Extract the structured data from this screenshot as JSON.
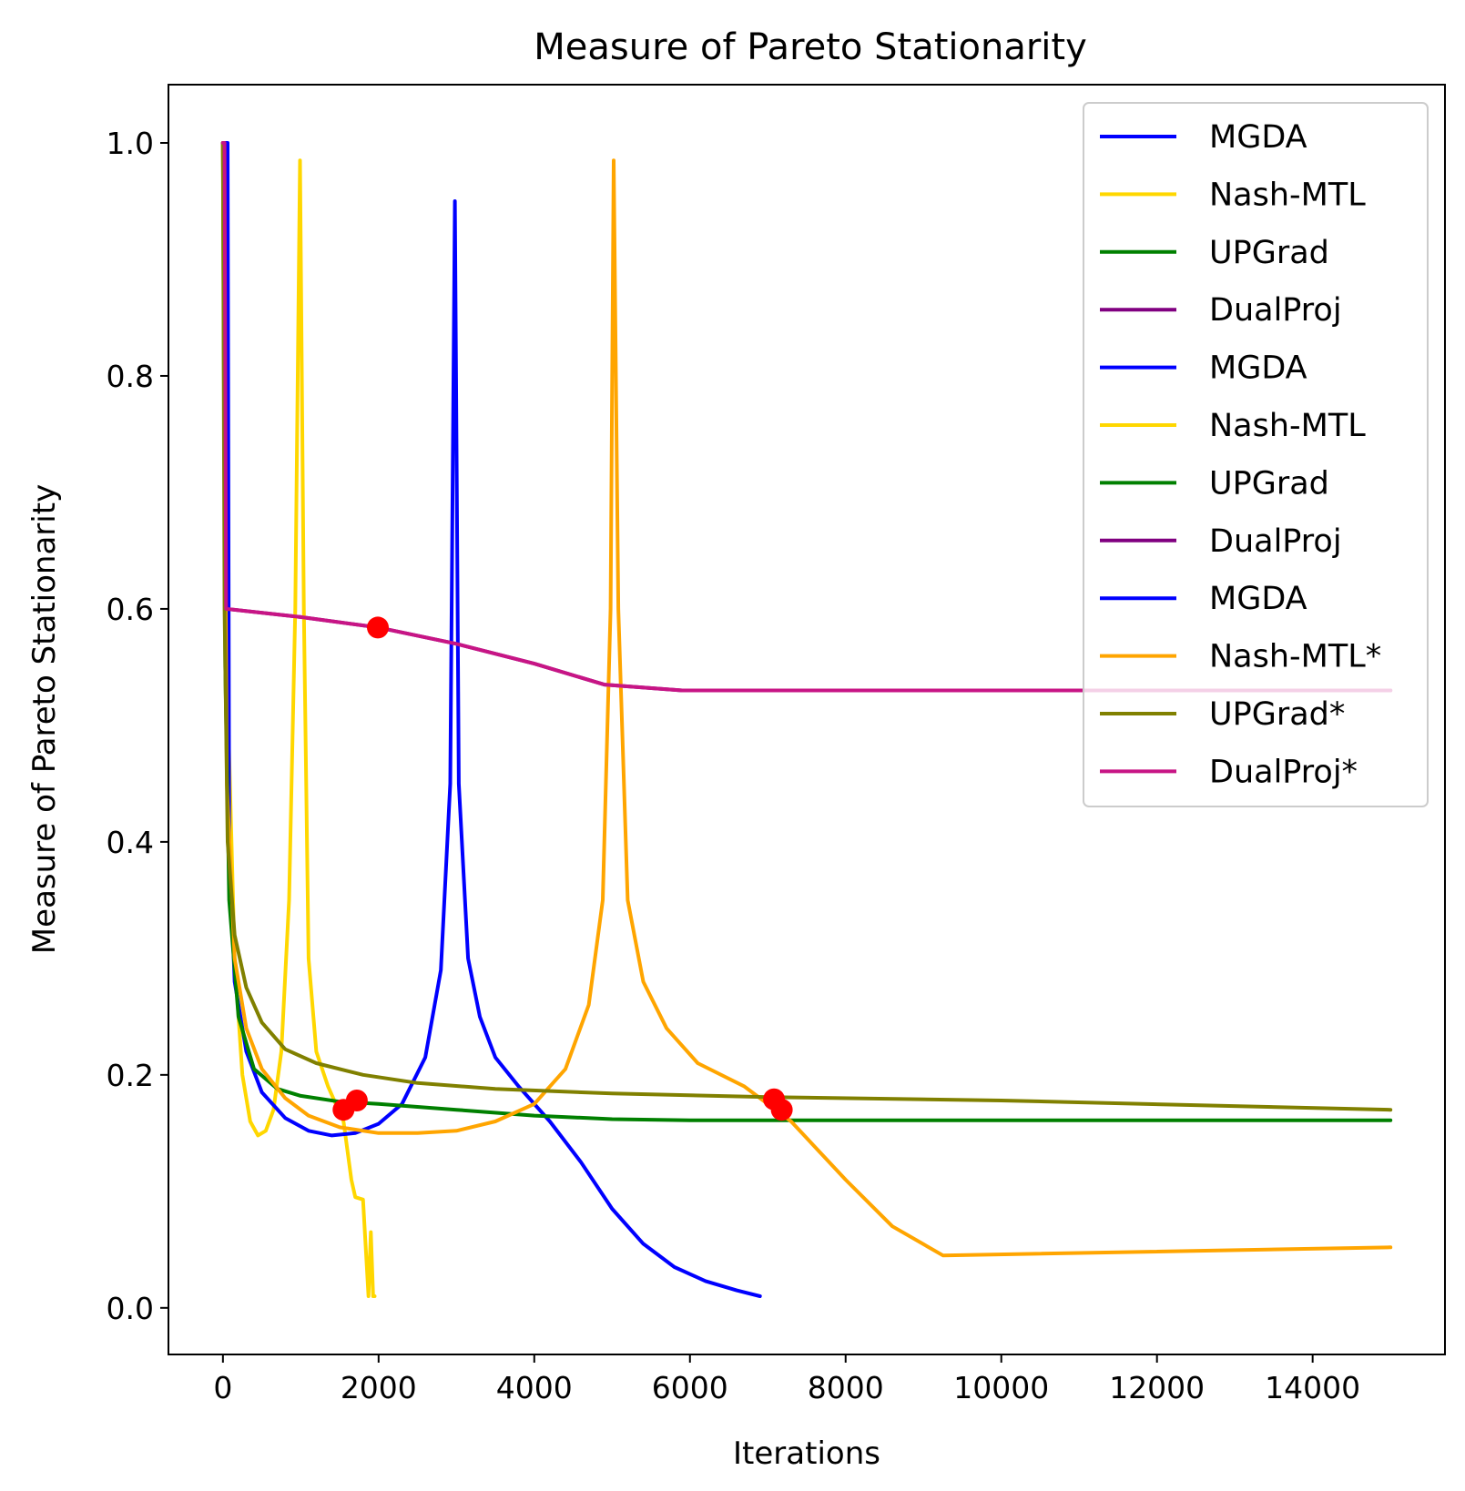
{
  "chart_data": {
    "type": "line",
    "title": "Measure of Pareto Stationarity",
    "xlabel": "Iterations",
    "ylabel": "Measure of Pareto Stationarity",
    "xlim": [
      -700,
      15700
    ],
    "ylim": [
      -0.04,
      1.05
    ],
    "x_ticks": [
      0,
      2000,
      4000,
      6000,
      8000,
      10000,
      12000,
      14000
    ],
    "x_tick_labels": [
      "0",
      "2000",
      "4000",
      "6000",
      "8000",
      "10000",
      "12000",
      "14000"
    ],
    "y_ticks": [
      0.0,
      0.2,
      0.4,
      0.6,
      0.8,
      1.0
    ],
    "y_tick_labels": [
      "0.0",
      "0.2",
      "0.4",
      "0.6",
      "0.8",
      "1.0"
    ],
    "grid": false,
    "legend_position": "top-right",
    "legend": [
      {
        "name": "MGDA",
        "color": "#0000ff"
      },
      {
        "name": "Nash-MTL",
        "color": "#ffd700"
      },
      {
        "name": "UPGrad",
        "color": "#008000"
      },
      {
        "name": "DualProj",
        "color": "#800080"
      },
      {
        "name": "MGDA",
        "color": "#0000ff"
      },
      {
        "name": "Nash-MTL",
        "color": "#ffd700"
      },
      {
        "name": "UPGrad",
        "color": "#008000"
      },
      {
        "name": "DualProj",
        "color": "#800080"
      },
      {
        "name": "MGDA",
        "color": "#0000ff"
      },
      {
        "name": "Nash-MTL*",
        "color": "#ffa500"
      },
      {
        "name": "UPGrad*",
        "color": "#808000"
      },
      {
        "name": "DualProj*",
        "color": "#c71585"
      }
    ],
    "series": [
      {
        "name": "DualProj",
        "color": "#800080",
        "points": [
          [
            0,
            1.0
          ],
          [
            20,
            1.0
          ],
          [
            40,
            0.6
          ],
          [
            1000,
            0.593
          ],
          [
            2000,
            0.584
          ],
          [
            3000,
            0.57
          ],
          [
            4000,
            0.553
          ],
          [
            4900,
            0.535
          ],
          [
            5900,
            0.53
          ],
          [
            15000,
            0.53
          ]
        ]
      },
      {
        "name": "Nash-MTL",
        "color": "#ffd700",
        "points": [
          [
            0,
            1.0
          ],
          [
            50,
            0.55
          ],
          [
            150,
            0.3
          ],
          [
            250,
            0.2
          ],
          [
            350,
            0.16
          ],
          [
            450,
            0.148
          ],
          [
            550,
            0.152
          ],
          [
            650,
            0.17
          ],
          [
            750,
            0.22
          ],
          [
            850,
            0.35
          ],
          [
            930,
            0.6
          ],
          [
            990,
            0.985
          ],
          [
            1040,
            0.6
          ],
          [
            1100,
            0.3
          ],
          [
            1200,
            0.22
          ],
          [
            1350,
            0.19
          ],
          [
            1550,
            0.16
          ],
          [
            1650,
            0.11
          ],
          [
            1700,
            0.095
          ],
          [
            1800,
            0.093
          ],
          [
            1870,
            0.01
          ],
          [
            1900,
            0.065
          ],
          [
            1930,
            0.01
          ],
          [
            1950,
            0.01
          ]
        ]
      },
      {
        "name": "MGDA",
        "color": "#0000ff",
        "points": [
          [
            0,
            1.0
          ],
          [
            60,
            1.0
          ],
          [
            80,
            0.4
          ],
          [
            150,
            0.28
          ],
          [
            300,
            0.22
          ],
          [
            500,
            0.185
          ],
          [
            800,
            0.163
          ],
          [
            1100,
            0.152
          ],
          [
            1400,
            0.148
          ],
          [
            1700,
            0.15
          ],
          [
            2000,
            0.158
          ],
          [
            2300,
            0.175
          ],
          [
            2600,
            0.215
          ],
          [
            2800,
            0.29
          ],
          [
            2920,
            0.45
          ],
          [
            2980,
            0.95
          ],
          [
            3030,
            0.45
          ],
          [
            3150,
            0.3
          ],
          [
            3300,
            0.25
          ],
          [
            3500,
            0.215
          ],
          [
            3800,
            0.19
          ],
          [
            4200,
            0.16
          ],
          [
            4600,
            0.125
          ],
          [
            5000,
            0.085
          ],
          [
            5400,
            0.055
          ],
          [
            5800,
            0.035
          ],
          [
            6200,
            0.023
          ],
          [
            6600,
            0.015
          ],
          [
            6900,
            0.01
          ]
        ]
      },
      {
        "name": "UPGrad",
        "color": "#008000",
        "points": [
          [
            0,
            1.0
          ],
          [
            30,
            0.55
          ],
          [
            80,
            0.35
          ],
          [
            200,
            0.25
          ],
          [
            400,
            0.205
          ],
          [
            700,
            0.188
          ],
          [
            1000,
            0.182
          ],
          [
            1500,
            0.177
          ],
          [
            2000,
            0.175
          ],
          [
            3000,
            0.17
          ],
          [
            4000,
            0.165
          ],
          [
            5000,
            0.162
          ],
          [
            6000,
            0.161
          ],
          [
            15000,
            0.161
          ]
        ]
      },
      {
        "name": "Nash-MTL*",
        "color": "#ffa500",
        "points": [
          [
            0,
            1.0
          ],
          [
            50,
            0.45
          ],
          [
            150,
            0.3
          ],
          [
            300,
            0.24
          ],
          [
            500,
            0.205
          ],
          [
            800,
            0.18
          ],
          [
            1100,
            0.165
          ],
          [
            1500,
            0.155
          ],
          [
            2000,
            0.15
          ],
          [
            2500,
            0.15
          ],
          [
            3000,
            0.152
          ],
          [
            3500,
            0.16
          ],
          [
            4000,
            0.175
          ],
          [
            4400,
            0.205
          ],
          [
            4700,
            0.26
          ],
          [
            4880,
            0.35
          ],
          [
            4980,
            0.6
          ],
          [
            5020,
            0.985
          ],
          [
            5080,
            0.6
          ],
          [
            5200,
            0.35
          ],
          [
            5400,
            0.28
          ],
          [
            5700,
            0.24
          ],
          [
            6100,
            0.21
          ],
          [
            6700,
            0.19
          ],
          [
            7300,
            0.16
          ],
          [
            8000,
            0.11
          ],
          [
            8600,
            0.07
          ],
          [
            9250,
            0.045
          ],
          [
            15000,
            0.052
          ]
        ]
      },
      {
        "name": "UPGrad*",
        "color": "#808000",
        "points": [
          [
            0,
            1.0
          ],
          [
            20,
            0.6
          ],
          [
            60,
            0.4
          ],
          [
            150,
            0.32
          ],
          [
            300,
            0.275
          ],
          [
            500,
            0.245
          ],
          [
            800,
            0.222
          ],
          [
            1200,
            0.21
          ],
          [
            1800,
            0.2
          ],
          [
            2500,
            0.193
          ],
          [
            3500,
            0.188
          ],
          [
            5000,
            0.184
          ],
          [
            7000,
            0.181
          ],
          [
            10000,
            0.178
          ],
          [
            15000,
            0.17
          ]
        ]
      },
      {
        "name": "DualProj*",
        "color": "#c71585",
        "points": [
          [
            0,
            1.0
          ],
          [
            20,
            1.0
          ],
          [
            40,
            0.6
          ],
          [
            1000,
            0.593
          ],
          [
            2000,
            0.584
          ],
          [
            3000,
            0.57
          ],
          [
            4000,
            0.553
          ],
          [
            4900,
            0.535
          ],
          [
            5900,
            0.53
          ],
          [
            15000,
            0.53
          ]
        ]
      }
    ],
    "markers": {
      "color": "#ff0000",
      "points": [
        [
          1550,
          0.17
        ],
        [
          1720,
          0.178
        ],
        [
          1990,
          0.584
        ],
        [
          7080,
          0.179
        ],
        [
          7180,
          0.17
        ]
      ]
    }
  }
}
